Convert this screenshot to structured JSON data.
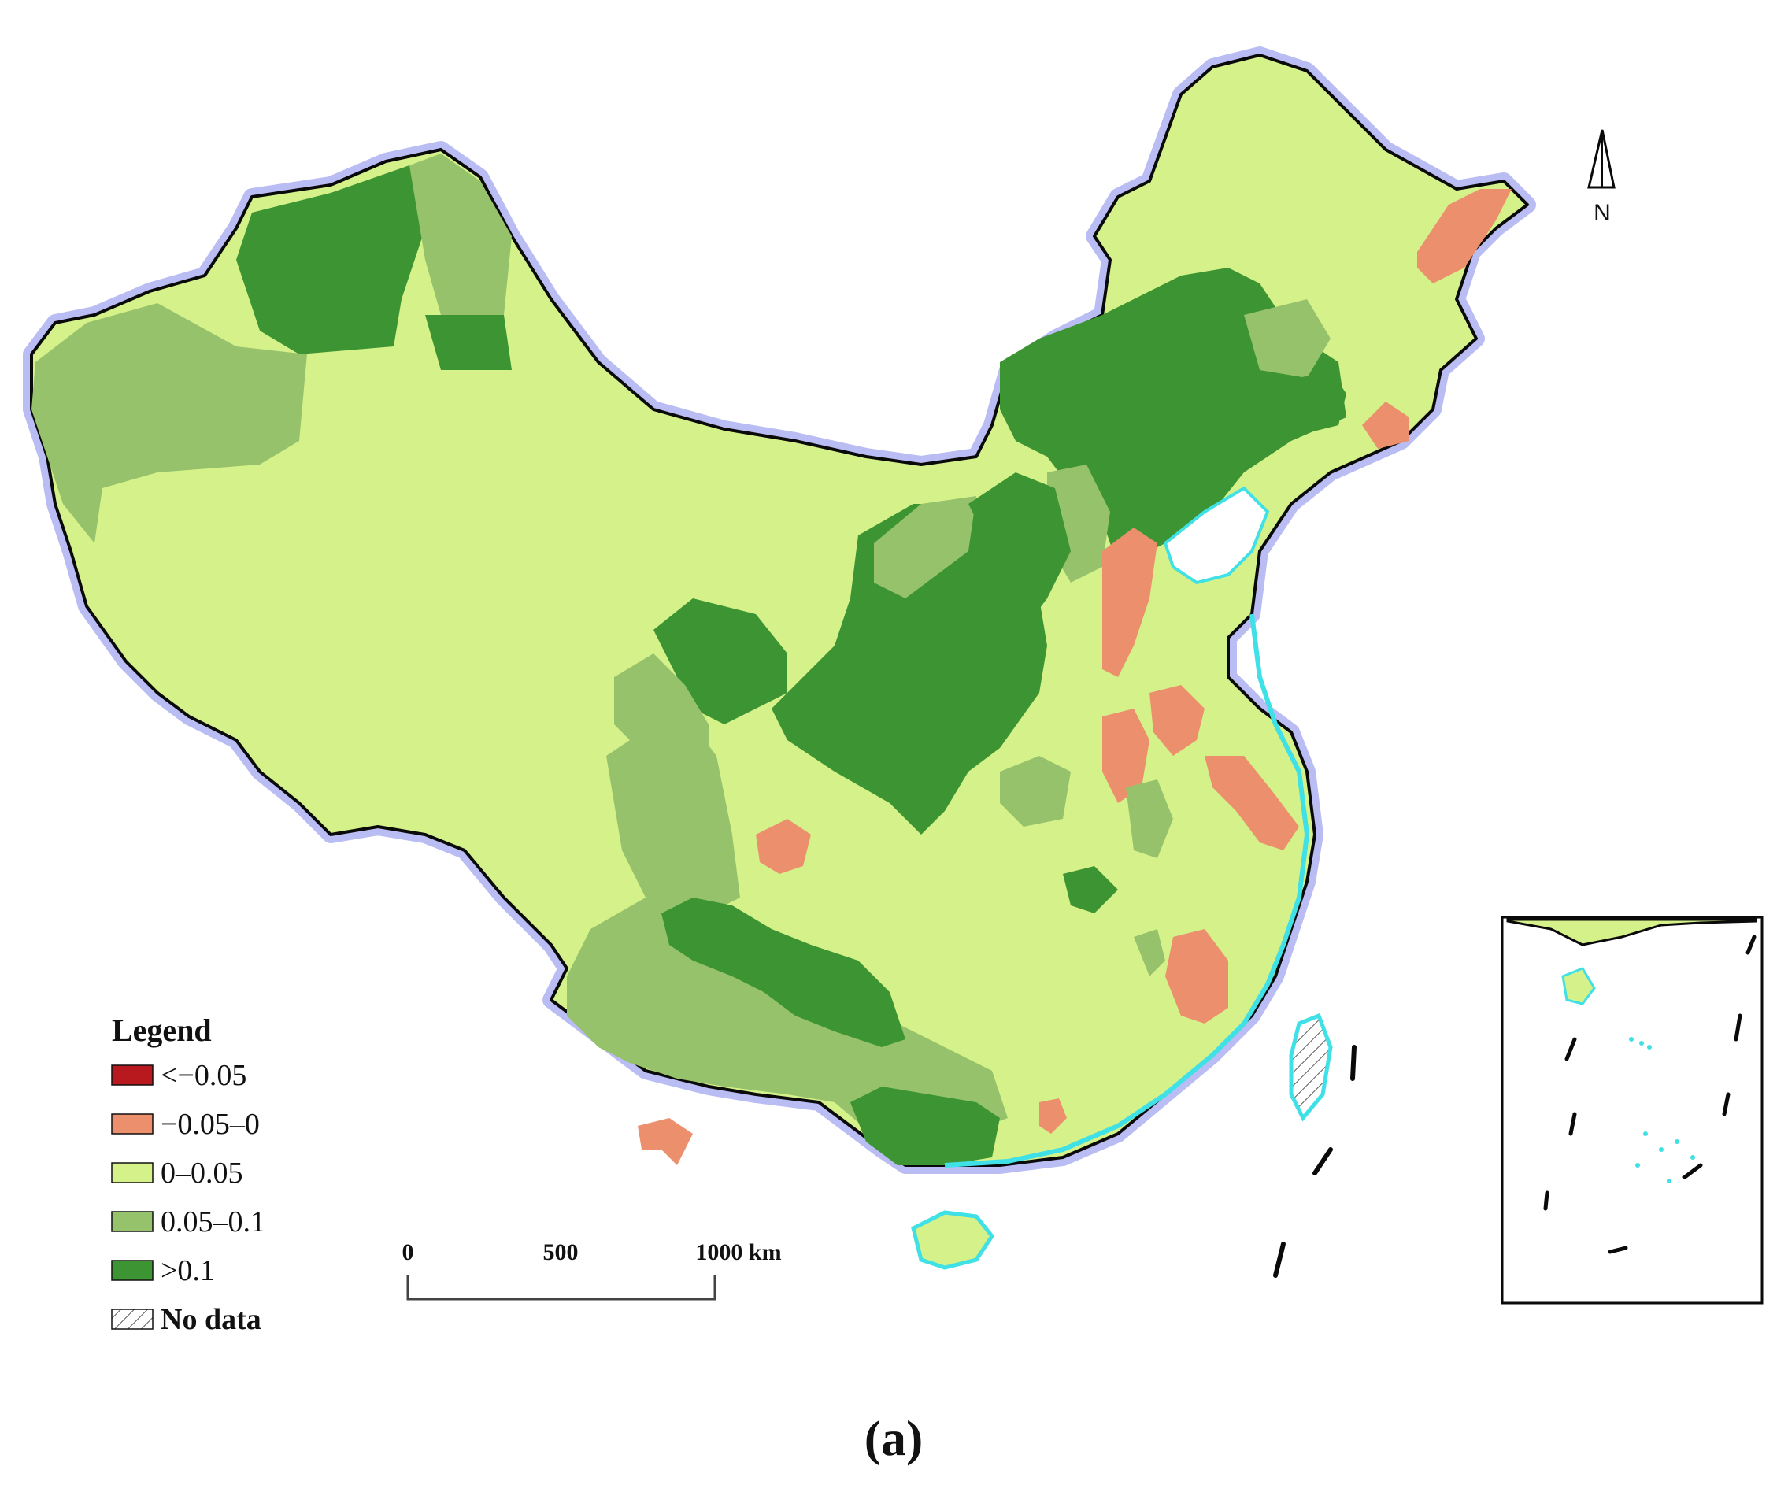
{
  "legend": {
    "title": "Legend",
    "items": [
      {
        "label": "<−0.05",
        "color": "#b7191e"
      },
      {
        "label": "−0.05–0",
        "color": "#ec8f6d"
      },
      {
        "label": "0–0.05",
        "color": "#d5f28a"
      },
      {
        "label": "0.05–0.1",
        "color": "#97c26c"
      },
      {
        "label": ">0.1",
        "color": "#3c9432"
      },
      {
        "label": "No data",
        "color": "hatch"
      }
    ]
  },
  "scale_bar": {
    "ticks": [
      "0",
      "500",
      "1000 km"
    ]
  },
  "north_arrow": {
    "label": "N",
    "icon": "north-arrow-icon"
  },
  "panel_label": "(a)",
  "colors": {
    "boundary": "#0a0a0a",
    "halo": "#b9bdf3",
    "coast": "#3fe0e6",
    "sea": "#ffffff"
  }
}
